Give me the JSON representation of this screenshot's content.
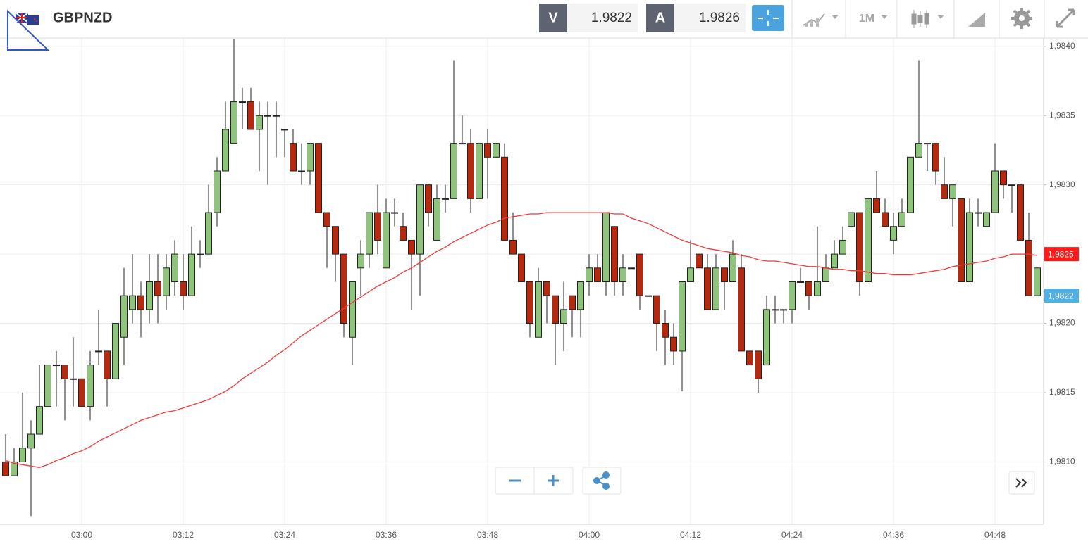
{
  "header": {
    "symbol": "GBPNZD",
    "sell_label": "V",
    "sell_price": 1.9822,
    "buy_label": "A",
    "buy_price": 1.9826,
    "timeframe": "1M"
  },
  "chart_data": {
    "type": "candlestick",
    "categories": [
      null,
      null,
      null,
      null,
      null,
      null,
      null,
      null,
      null,
      "03:00",
      null,
      null,
      null,
      null,
      null,
      null,
      null,
      null,
      null,
      null,
      null,
      "03:12",
      null,
      null,
      null,
      null,
      null,
      null,
      null,
      null,
      null,
      null,
      null,
      "03:24",
      null,
      null,
      null,
      null,
      null,
      null,
      null,
      null,
      null,
      null,
      null,
      "03:36",
      null,
      null,
      null,
      null,
      null,
      null,
      null,
      null,
      null,
      null,
      null,
      "03:48",
      null,
      null,
      null,
      null,
      null,
      null,
      null,
      null,
      null,
      null,
      null,
      "04:00",
      null,
      null,
      null,
      null,
      null,
      null,
      null,
      null,
      null,
      null,
      null,
      "04:12",
      null,
      null,
      null,
      null,
      null,
      null,
      null,
      null,
      null,
      null,
      null,
      "04:24",
      null,
      null,
      null,
      null,
      null,
      null,
      null,
      null,
      null,
      null,
      null,
      "04:36",
      null,
      null,
      null,
      null,
      null,
      null,
      null,
      null,
      null,
      null,
      null,
      "04:48",
      null,
      null,
      null,
      null,
      null
    ],
    "open": [
      1.981,
      1.9809,
      1.981,
      1.9811,
      1.9812,
      1.9814,
      1.9817,
      1.9817,
      1.9816,
      1.9816,
      1.9814,
      1.9818,
      1.9818,
      1.9816,
      1.9819,
      1.9821,
      1.9822,
      1.9821,
      1.9823,
      1.9822,
      1.9823,
      1.9823,
      1.9822,
      1.9825,
      1.9825,
      1.9828,
      1.9831,
      1.9833,
      1.9836,
      1.9836,
      1.9834,
      1.9835,
      1.9835,
      1.9834,
      1.9833,
      1.9831,
      1.9831,
      1.9833,
      1.9828,
      1.9827,
      1.9825,
      1.9819,
      1.9824,
      1.9825,
      1.9828,
      1.9824,
      1.9828,
      1.9827,
      1.9826,
      1.9825,
      1.983,
      1.9826,
      1.9829,
      1.9829,
      1.9833,
      1.9833,
      1.9829,
      1.9833,
      1.9832,
      1.9832,
      1.9826,
      1.9825,
      1.9823,
      1.9819,
      1.9823,
      1.9822,
      1.982,
      1.9822,
      1.9821,
      1.9823,
      1.9824,
      1.9823,
      1.9827,
      1.9823,
      1.9824,
      1.9825,
      1.9822,
      1.9822,
      1.982,
      1.9819,
      1.9818,
      1.9823,
      1.9825,
      1.9824,
      1.9821,
      1.9824,
      1.9823,
      1.9824,
      1.9818,
      1.9818,
      1.9817,
      1.9821,
      1.9821,
      1.9821,
      1.9823,
      1.9823,
      1.9822,
      1.9823,
      1.9824,
      1.9825,
      1.9827,
      1.9828,
      1.9823,
      1.9829,
      1.9828,
      1.9826,
      1.9827,
      1.9828,
      1.9832,
      1.9833,
      1.9833,
      1.983,
      1.9829,
      1.9829,
      1.9823,
      1.9828,
      1.9827,
      1.9828,
      1.9831,
      1.983,
      1.983,
      1.9826,
      1.9822
    ],
    "high": [
      1.9812,
      1.9811,
      1.9815,
      1.9813,
      1.9817,
      1.9817,
      1.9818,
      1.9817,
      1.9819,
      1.9816,
      1.9818,
      1.9821,
      1.9818,
      1.982,
      1.9824,
      1.9825,
      1.9823,
      1.9825,
      1.9825,
      1.9825,
      1.9826,
      1.9825,
      1.9827,
      1.9826,
      1.983,
      1.9832,
      1.9836,
      1.98405,
      1.9837,
      1.9837,
      1.9836,
      1.9836,
      1.9836,
      1.9834,
      1.9834,
      1.9833,
      1.9833,
      1.9833,
      1.9828,
      1.9827,
      1.9825,
      1.9823,
      1.9826,
      1.9828,
      1.983,
      1.9829,
      1.9829,
      1.9828,
      1.9826,
      1.983,
      1.983,
      1.983,
      1.983,
      1.9839,
      1.9835,
      1.9834,
      1.9833,
      1.9834,
      1.9833,
      1.9833,
      1.9828,
      1.9825,
      1.9823,
      1.9824,
      1.9823,
      1.9822,
      1.9823,
      1.9822,
      1.9823,
      1.9825,
      1.9825,
      1.9828,
      1.9827,
      1.9825,
      1.9824,
      1.9825,
      1.9822,
      1.9822,
      1.9821,
      1.982,
      1.9823,
      1.9826,
      1.9825,
      1.9825,
      1.9825,
      1.9824,
      1.9826,
      1.9825,
      1.9818,
      1.9818,
      1.9822,
      1.9822,
      1.9821,
      1.9823,
      1.9824,
      1.9823,
      1.9827,
      1.9825,
      1.9826,
      1.9827,
      1.9828,
      1.9828,
      1.9829,
      1.9831,
      1.9829,
      1.9828,
      1.9829,
      1.9832,
      1.9839,
      1.9833,
      1.9833,
      1.9832,
      1.983,
      1.9829,
      1.9829,
      1.9829,
      1.9828,
      1.9833,
      1.9831,
      1.983,
      1.983,
      1.9828,
      1.9824
    ],
    "low": [
      1.9809,
      1.9809,
      1.981,
      1.98061,
      1.9812,
      1.9814,
      1.9814,
      1.9813,
      1.9814,
      1.9814,
      1.9813,
      1.9817,
      1.9814,
      1.9816,
      1.9817,
      1.982,
      1.9819,
      1.982,
      1.982,
      1.9821,
      1.9822,
      1.9821,
      1.9822,
      1.9824,
      1.9825,
      1.9827,
      1.9831,
      1.9833,
      1.9834,
      1.9834,
      1.9831,
      1.983,
      1.9832,
      1.9832,
      1.9831,
      1.983,
      1.983,
      1.9828,
      1.9824,
      1.9823,
      1.9819,
      1.9817,
      1.9822,
      1.9824,
      1.9825,
      1.9824,
      1.9827,
      1.9826,
      1.9821,
      1.9822,
      1.9827,
      1.9826,
      1.9828,
      1.9829,
      1.9833,
      1.9828,
      1.9829,
      1.9829,
      1.9832,
      1.9826,
      1.9825,
      1.9823,
      1.9819,
      1.9819,
      1.982,
      1.9817,
      1.9818,
      1.9819,
      1.9819,
      1.9822,
      1.9823,
      1.9822,
      1.9822,
      1.9822,
      1.9824,
      1.9821,
      1.9822,
      1.9818,
      1.9817,
      1.9817,
      1.98151,
      1.9823,
      1.9824,
      1.9821,
      1.9821,
      1.9821,
      1.9823,
      1.9818,
      1.9817,
      1.9815,
      1.9817,
      1.982,
      1.982,
      1.982,
      1.9823,
      1.9821,
      1.9822,
      1.9823,
      1.9824,
      1.9825,
      1.9827,
      1.9822,
      1.9823,
      1.9828,
      1.9827,
      1.9825,
      1.9827,
      1.9828,
      1.9832,
      1.9831,
      1.983,
      1.9829,
      1.9827,
      1.9823,
      1.9823,
      1.9827,
      1.9827,
      1.9828,
      1.9829,
      1.9828,
      1.9826,
      1.9822,
      1.9822
    ],
    "close": [
      1.9809,
      1.981,
      1.9811,
      1.9812,
      1.9814,
      1.9817,
      1.9817,
      1.9816,
      1.9816,
      1.9814,
      1.9817,
      1.9818,
      1.9816,
      1.982,
      1.9822,
      1.9822,
      1.9821,
      1.9823,
      1.9822,
      1.9824,
      1.9825,
      1.9822,
      1.9825,
      1.9825,
      1.9828,
      1.9831,
      1.9834,
      1.9836,
      1.9836,
      1.9834,
      1.9835,
      1.9835,
      1.9835,
      1.9834,
      1.9831,
      1.9831,
      1.9833,
      1.9828,
      1.9827,
      1.9825,
      1.982,
      1.9823,
      1.9825,
      1.9828,
      1.9826,
      1.9828,
      1.9828,
      1.9826,
      1.9825,
      1.983,
      1.9828,
      1.9829,
      1.9829,
      1.9833,
      1.9833,
      1.9829,
      1.9833,
      1.9832,
      1.9833,
      1.9826,
      1.9825,
      1.9823,
      1.982,
      1.9823,
      1.9822,
      1.982,
      1.9821,
      1.9821,
      1.9823,
      1.9824,
      1.9823,
      1.9828,
      1.9823,
      1.9824,
      1.9824,
      1.9822,
      1.9822,
      1.982,
      1.9819,
      1.9818,
      1.9823,
      1.9824,
      1.9824,
      1.9821,
      1.9824,
      1.9823,
      1.9825,
      1.9818,
      1.9817,
      1.9816,
      1.9821,
      1.9821,
      1.9821,
      1.9823,
      1.9823,
      1.9822,
      1.9823,
      1.9824,
      1.9825,
      1.9826,
      1.9828,
      1.9823,
      1.9829,
      1.9828,
      1.9827,
      1.9827,
      1.9828,
      1.9832,
      1.9833,
      1.9833,
      1.9831,
      1.9829,
      1.983,
      1.9823,
      1.9828,
      1.9828,
      1.9828,
      1.9831,
      1.983,
      1.983,
      1.9826,
      1.9822,
      1.9824
    ],
    "up_color": "#8fc47d",
    "down_color": "#b52a0e",
    "moving_average": {
      "color": "#f23a3a",
      "values": [
        1.98101,
        1.98099,
        1.98098,
        1.98097,
        1.98096,
        1.98098,
        1.98101,
        1.98103,
        1.98106,
        1.98108,
        1.98111,
        1.98115,
        1.98118,
        1.98121,
        1.98124,
        1.98127,
        1.9813,
        1.98132,
        1.98134,
        1.98136,
        1.98137,
        1.98139,
        1.98141,
        1.98143,
        1.98145,
        1.98148,
        1.98151,
        1.98155,
        1.9816,
        1.98164,
        1.98168,
        1.98172,
        1.98177,
        1.98181,
        1.98186,
        1.98191,
        1.98195,
        1.98199,
        1.98203,
        1.98207,
        1.98211,
        1.98215,
        1.98219,
        1.98223,
        1.98227,
        1.9823,
        1.98233,
        1.98237,
        1.9824,
        1.98244,
        1.98248,
        1.98252,
        1.98255,
        1.98259,
        1.98262,
        1.98265,
        1.98268,
        1.98271,
        1.98273,
        1.98276,
        1.98277,
        1.98278,
        1.98279,
        1.98279,
        1.9828,
        1.9828,
        1.9828,
        1.9828,
        1.9828,
        1.9828,
        1.9828,
        1.9828,
        1.98279,
        1.98279,
        1.98276,
        1.98274,
        1.98272,
        1.98269,
        1.98266,
        1.98263,
        1.9826,
        1.98258,
        1.98256,
        1.98254,
        1.98253,
        1.98252,
        1.98251,
        1.98249,
        1.98248,
        1.98246,
        1.98245,
        1.98245,
        1.98244,
        1.98243,
        1.98242,
        1.98241,
        1.98241,
        1.9824,
        1.98239,
        1.98239,
        1.98238,
        1.98238,
        1.98237,
        1.98236,
        1.98236,
        1.98235,
        1.98235,
        1.98235,
        1.98236,
        1.98237,
        1.98238,
        1.98239,
        1.98241,
        1.98242,
        1.98243,
        1.98244,
        1.98245,
        1.98247,
        1.98248,
        1.9825,
        1.9825,
        1.9825,
        1.98249
      ]
    },
    "price_labels": [
      {
        "value": 1.9825,
        "label": "1,9825",
        "color": "#ff1a1a"
      },
      {
        "value": 1.9822,
        "label": "1,9822",
        "color": "#4fb0e6"
      }
    ],
    "ylim": [
      1.98055,
      1.98406
    ],
    "yticks": [
      {
        "value": 1.981,
        "label": "1,9810"
      },
      {
        "value": 1.9815,
        "label": "1,9815"
      },
      {
        "value": 1.982,
        "label": "1,9820"
      },
      {
        "value": 1.9825,
        "label": "1,9825"
      },
      {
        "value": 1.983,
        "label": "1,9830"
      },
      {
        "value": 1.9835,
        "label": "1,9835"
      },
      {
        "value": 1.984,
        "label": "1,9840"
      }
    ],
    "grid": true
  }
}
